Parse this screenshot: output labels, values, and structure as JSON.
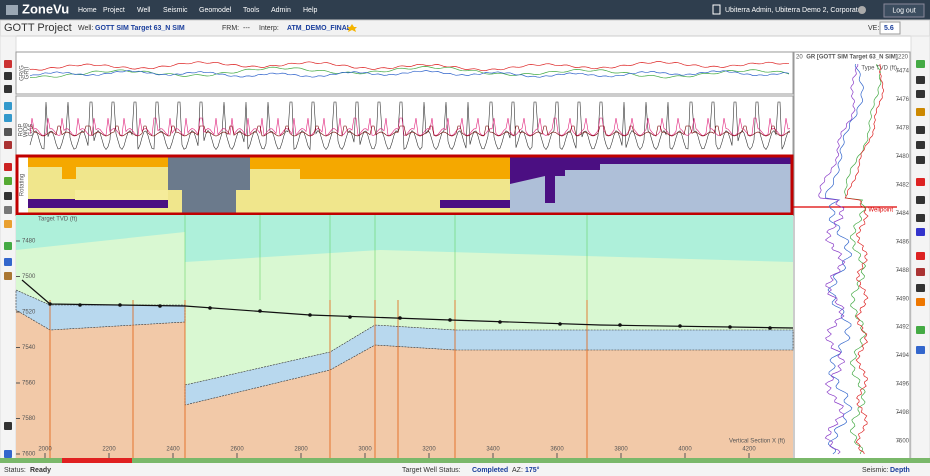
{
  "nav": {
    "logo": "ZoneVu",
    "items": [
      "Home",
      "Project",
      "Well",
      "Seismic",
      "Geomodel",
      "Tools",
      "Admin",
      "Help"
    ],
    "user": "Ubiterra Admin, Ubiterra Demo 2, Corporate",
    "logout": "Log out"
  },
  "toolbar": {
    "project": "GOTT Project",
    "well_label": "Well:",
    "well": "GOTT SIM Target 63_N SIM",
    "frm_label": "FRM:",
    "frm": "---",
    "interp_label": "Interp:",
    "interp": "ATM_DEMO_FINAL",
    "ve_label": "VE:",
    "ve": "5.6"
  },
  "tracks": {
    "labels": [
      "GR(G",
      "GR(I",
      "ROP",
      "WOB",
      "GAS",
      "Rotating"
    ]
  },
  "section": {
    "y_axis_label": "Target TVD (ft)",
    "x_axis_label": "Vertical Section X (ft)",
    "yticks": [
      7480,
      7500,
      7520,
      7540,
      7560,
      7580,
      7600
    ],
    "xticks": [
      2000,
      2200,
      2400,
      2600,
      2800,
      3000,
      3200,
      3400,
      3600,
      3800,
      4000,
      4200
    ]
  },
  "type_log": {
    "min": "20",
    "title": "GR [GOTT SIM Target 63_N SIM]",
    "max": "220",
    "axis_label": "Type TVD (ft)",
    "ticks": [
      7474,
      7476,
      7478,
      7480,
      7482,
      7484,
      7486,
      7488,
      7490,
      7492,
      7494,
      7496,
      7498,
      7500
    ],
    "marker": "Wellpoint"
  },
  "status": {
    "label": "Status:",
    "value": "Ready",
    "well_status_label": "Target Well Status:",
    "well_status": "Completed",
    "az_label": "AZ:",
    "az": "175°",
    "seismic_label": "Seismic:",
    "seismic": "Depth"
  }
}
